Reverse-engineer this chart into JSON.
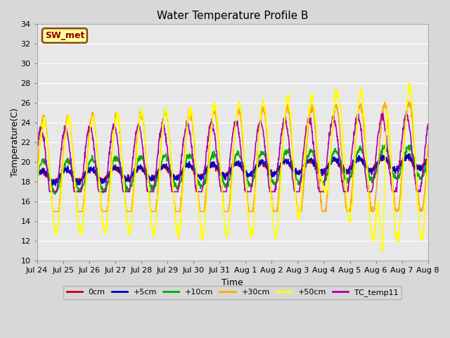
{
  "title": "Water Temperature Profile B",
  "xlabel": "Time",
  "ylabel": "Temperature(C)",
  "ylim": [
    10,
    34
  ],
  "yticks": [
    10,
    12,
    14,
    16,
    18,
    20,
    22,
    24,
    26,
    28,
    30,
    32,
    34
  ],
  "fig_bg_color": "#d8d8d8",
  "plot_bg_color": "#e8e8e8",
  "grid_color": "#ffffff",
  "series": {
    "0cm": {
      "color": "#cc0000",
      "lw": 1.2
    },
    "+5cm": {
      "color": "#0000cc",
      "lw": 1.2
    },
    "+10cm": {
      "color": "#00aa00",
      "lw": 1.2
    },
    "+30cm": {
      "color": "#ffaa00",
      "lw": 1.2
    },
    "+50cm": {
      "color": "#ffff00",
      "lw": 1.2
    },
    "TC_temp11": {
      "color": "#aa00aa",
      "lw": 1.2
    }
  },
  "label_box": {
    "text": "SW_met",
    "facecolor": "#ffff99",
    "edgecolor": "#8B4513",
    "textcolor": "#8B0000"
  },
  "x_tick_labels": [
    "Jul 24",
    "Jul 25",
    "Jul 26",
    "Jul 27",
    "Jul 28",
    "Jul 29",
    "Jul 30",
    "Jul 31",
    "Aug 1",
    "Aug 2",
    "Aug 3",
    "Aug 4",
    "Aug 5",
    "Aug 6",
    "Aug 7",
    "Aug 8"
  ]
}
